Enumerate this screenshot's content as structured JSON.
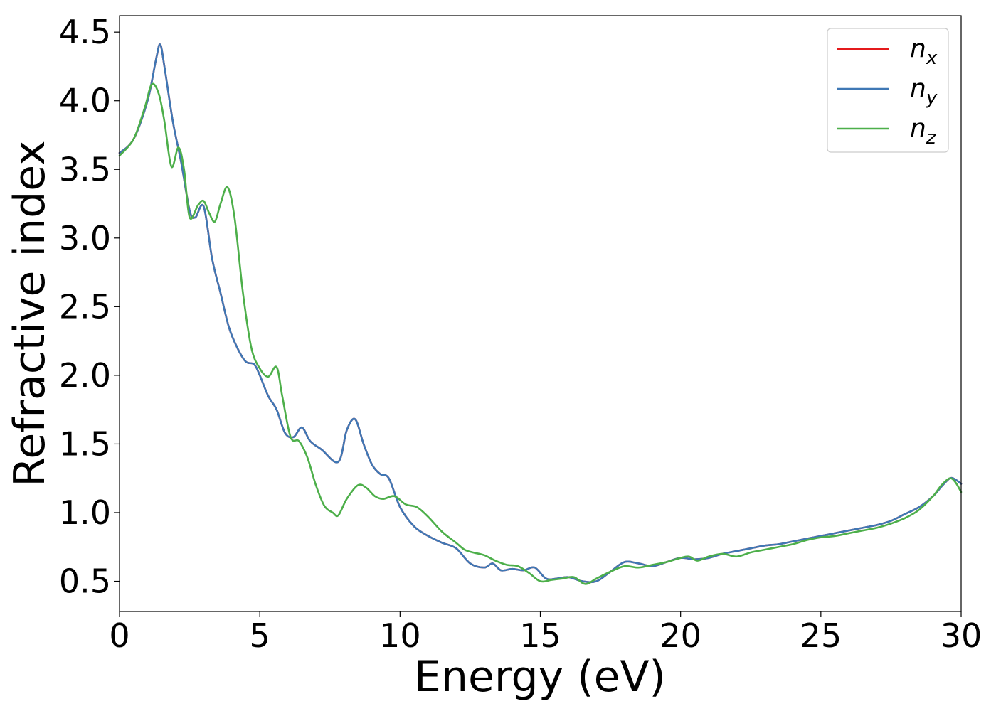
{
  "chart_data": {
    "type": "line",
    "xlabel": "Energy (eV)",
    "ylabel": "Refractive index",
    "xlim": [
      0,
      30
    ],
    "ylim": [
      0.28,
      4.62
    ],
    "xticks": [
      0,
      5,
      10,
      15,
      20,
      25,
      30
    ],
    "xtick_labels": [
      "0",
      "5",
      "10",
      "15",
      "20",
      "25",
      "30"
    ],
    "yticks": [
      0.5,
      1.0,
      1.5,
      2.0,
      2.5,
      3.0,
      3.5,
      4.0,
      4.5
    ],
    "ytick_labels": [
      "0.5",
      "1.0",
      "1.5",
      "2.0",
      "2.5",
      "3.0",
      "3.5",
      "4.0",
      "4.5"
    ],
    "grid": false,
    "legend_position": "top-right",
    "series": [
      {
        "name": "n",
        "subscript": "x",
        "color": "#e41a1c",
        "x": [
          0,
          0.5,
          1.0,
          1.3,
          1.45,
          1.6,
          1.9,
          2.2,
          2.5,
          2.7,
          3.0,
          3.3,
          3.6,
          3.9,
          4.2,
          4.5,
          4.8,
          5.0,
          5.3,
          5.6,
          5.9,
          6.2,
          6.5,
          6.8,
          7.2,
          7.8,
          8.1,
          8.4,
          8.7,
          9.0,
          9.3,
          9.6,
          10.0,
          10.5,
          11.0,
          11.5,
          12.0,
          12.5,
          13.0,
          13.3,
          13.6,
          14.0,
          14.4,
          14.8,
          15.2,
          15.6,
          16.0,
          16.5,
          17.0,
          17.5,
          18.0,
          18.5,
          19.0,
          19.5,
          20.0,
          20.5,
          21.0,
          21.5,
          22.0,
          22.5,
          23.0,
          23.5,
          24.0,
          24.5,
          25.0,
          25.5,
          26.0,
          26.5,
          27.0,
          27.5,
          28.0,
          28.5,
          29.0,
          29.3,
          29.6,
          29.8,
          30.0
        ],
        "y": [
          3.62,
          3.72,
          4.0,
          4.3,
          4.41,
          4.25,
          3.85,
          3.55,
          3.2,
          3.15,
          3.23,
          2.85,
          2.6,
          2.35,
          2.2,
          2.1,
          2.08,
          2.0,
          1.85,
          1.75,
          1.58,
          1.55,
          1.62,
          1.52,
          1.46,
          1.37,
          1.6,
          1.68,
          1.5,
          1.35,
          1.28,
          1.25,
          1.04,
          0.9,
          0.83,
          0.78,
          0.74,
          0.63,
          0.6,
          0.63,
          0.58,
          0.59,
          0.58,
          0.6,
          0.52,
          0.52,
          0.53,
          0.5,
          0.5,
          0.57,
          0.64,
          0.63,
          0.61,
          0.64,
          0.67,
          0.66,
          0.67,
          0.7,
          0.72,
          0.74,
          0.76,
          0.77,
          0.79,
          0.81,
          0.83,
          0.85,
          0.87,
          0.89,
          0.91,
          0.94,
          0.99,
          1.04,
          1.12,
          1.19,
          1.25,
          1.24,
          1.21
        ]
      },
      {
        "name": "n",
        "subscript": "y",
        "color": "#3f78b5",
        "x": [
          0,
          0.5,
          1.0,
          1.3,
          1.45,
          1.6,
          1.9,
          2.2,
          2.5,
          2.7,
          3.0,
          3.3,
          3.6,
          3.9,
          4.2,
          4.5,
          4.8,
          5.0,
          5.3,
          5.6,
          5.9,
          6.2,
          6.5,
          6.8,
          7.2,
          7.8,
          8.1,
          8.4,
          8.7,
          9.0,
          9.3,
          9.6,
          10.0,
          10.5,
          11.0,
          11.5,
          12.0,
          12.5,
          13.0,
          13.3,
          13.6,
          14.0,
          14.4,
          14.8,
          15.2,
          15.6,
          16.0,
          16.5,
          17.0,
          17.5,
          18.0,
          18.5,
          19.0,
          19.5,
          20.0,
          20.5,
          21.0,
          21.5,
          22.0,
          22.5,
          23.0,
          23.5,
          24.0,
          24.5,
          25.0,
          25.5,
          26.0,
          26.5,
          27.0,
          27.5,
          28.0,
          28.5,
          29.0,
          29.3,
          29.6,
          29.8,
          30.0
        ],
        "y": [
          3.62,
          3.72,
          4.0,
          4.3,
          4.41,
          4.25,
          3.85,
          3.55,
          3.2,
          3.15,
          3.23,
          2.85,
          2.6,
          2.35,
          2.2,
          2.1,
          2.08,
          2.0,
          1.85,
          1.75,
          1.58,
          1.55,
          1.62,
          1.52,
          1.46,
          1.37,
          1.6,
          1.68,
          1.5,
          1.35,
          1.28,
          1.25,
          1.04,
          0.9,
          0.83,
          0.78,
          0.74,
          0.63,
          0.6,
          0.63,
          0.58,
          0.59,
          0.58,
          0.6,
          0.52,
          0.52,
          0.53,
          0.5,
          0.5,
          0.57,
          0.64,
          0.63,
          0.61,
          0.64,
          0.67,
          0.66,
          0.67,
          0.7,
          0.72,
          0.74,
          0.76,
          0.77,
          0.79,
          0.81,
          0.83,
          0.85,
          0.87,
          0.89,
          0.91,
          0.94,
          0.99,
          1.04,
          1.12,
          1.19,
          1.25,
          1.24,
          1.21
        ]
      },
      {
        "name": "n",
        "subscript": "z",
        "color": "#4daf4a",
        "x": [
          0,
          0.5,
          0.9,
          1.15,
          1.4,
          1.6,
          1.85,
          2.1,
          2.3,
          2.5,
          2.8,
          3.0,
          3.2,
          3.4,
          3.6,
          3.85,
          4.1,
          4.4,
          4.7,
          5.0,
          5.3,
          5.6,
          5.8,
          6.1,
          6.4,
          6.7,
          7.0,
          7.3,
          7.6,
          7.8,
          8.1,
          8.5,
          8.8,
          9.1,
          9.4,
          9.8,
          10.2,
          10.6,
          11.0,
          11.5,
          12.0,
          12.3,
          12.6,
          13.0,
          13.4,
          13.8,
          14.2,
          14.6,
          15.0,
          15.4,
          15.8,
          16.2,
          16.6,
          17.0,
          17.5,
          18.0,
          18.5,
          19.0,
          19.5,
          20.0,
          20.3,
          20.6,
          21.0,
          21.5,
          22.0,
          22.5,
          23.0,
          23.5,
          24.0,
          24.5,
          25.0,
          25.5,
          26.0,
          26.5,
          27.0,
          27.5,
          28.0,
          28.5,
          29.0,
          29.3,
          29.6,
          29.8,
          30.0
        ],
        "y": [
          3.6,
          3.72,
          3.95,
          4.12,
          4.05,
          3.85,
          3.52,
          3.66,
          3.5,
          3.15,
          3.24,
          3.27,
          3.18,
          3.12,
          3.25,
          3.37,
          3.15,
          2.6,
          2.2,
          2.05,
          1.99,
          2.06,
          1.85,
          1.55,
          1.52,
          1.4,
          1.2,
          1.05,
          1.0,
          0.98,
          1.1,
          1.2,
          1.18,
          1.12,
          1.1,
          1.12,
          1.06,
          1.04,
          0.97,
          0.86,
          0.78,
          0.73,
          0.71,
          0.69,
          0.65,
          0.62,
          0.61,
          0.56,
          0.5,
          0.51,
          0.52,
          0.53,
          0.48,
          0.52,
          0.57,
          0.61,
          0.6,
          0.62,
          0.64,
          0.67,
          0.68,
          0.65,
          0.68,
          0.7,
          0.68,
          0.71,
          0.73,
          0.75,
          0.77,
          0.8,
          0.82,
          0.83,
          0.85,
          0.87,
          0.89,
          0.92,
          0.96,
          1.02,
          1.12,
          1.2,
          1.25,
          1.22,
          1.15
        ]
      }
    ]
  }
}
